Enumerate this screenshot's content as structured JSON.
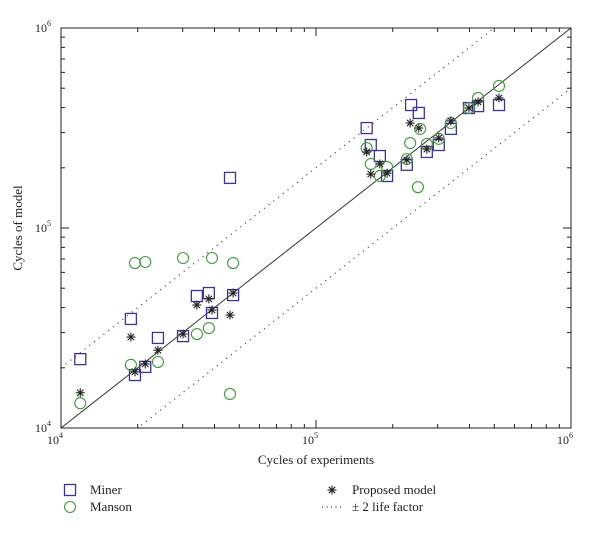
{
  "chart_data": {
    "type": "scatter",
    "title": "",
    "xlabel": "Cycles of experiments",
    "ylabel": "Cycles of model",
    "xscale": "log",
    "yscale": "log",
    "xlim": [
      10000,
      1000000
    ],
    "ylim": [
      10000,
      1000000
    ],
    "xticks": [
      {
        "base": "10",
        "exp": "4"
      },
      {
        "base": "10",
        "exp": "5"
      },
      {
        "base": "10",
        "exp": "6"
      }
    ],
    "yticks": [
      {
        "base": "10",
        "exp": "4"
      },
      {
        "base": "10",
        "exp": "5"
      },
      {
        "base": "10",
        "exp": "6"
      }
    ],
    "grid": false,
    "legend_position": "bottom",
    "reference_lines": [
      {
        "name": "1:1 line",
        "factor": 1,
        "style": "solid"
      },
      {
        "name": "± 2 life factor",
        "factor": 2,
        "style": "dotted"
      },
      {
        "name": "± 2 life factor",
        "factor": 0.5,
        "style": "dotted"
      }
    ],
    "series": [
      {
        "name": "Miner",
        "marker": "square",
        "color": "#3d3399",
        "points": [
          [
            11900,
            22100
          ],
          [
            18800,
            35100
          ],
          [
            19500,
            18400
          ],
          [
            21400,
            20200
          ],
          [
            24000,
            28200
          ],
          [
            30100,
            28800
          ],
          [
            34100,
            45700
          ],
          [
            38000,
            47300
          ],
          [
            39100,
            37600
          ],
          [
            47300,
            46200
          ],
          [
            46000,
            178000
          ],
          [
            236000,
            412000
          ],
          [
            253000,
            376000
          ],
          [
            158000,
            316000
          ],
          [
            164000,
            260000
          ],
          [
            178000,
            229000
          ],
          [
            190000,
            182000
          ],
          [
            227000,
            207000
          ],
          [
            272000,
            240000
          ],
          [
            303000,
            260000
          ],
          [
            338000,
            313000
          ],
          [
            398000,
            398000
          ],
          [
            432000,
            407000
          ],
          [
            522000,
            412000
          ]
        ]
      },
      {
        "name": "Manson",
        "marker": "circle",
        "color": "#3f9a3a",
        "points": [
          [
            11900,
            13300
          ],
          [
            19500,
            66800
          ],
          [
            21400,
            67600
          ],
          [
            18800,
            20700
          ],
          [
            24000,
            21400
          ],
          [
            30100,
            70800
          ],
          [
            34100,
            29500
          ],
          [
            38000,
            31600
          ],
          [
            39100,
            70800
          ],
          [
            47300,
            66800
          ],
          [
            46000,
            14800
          ],
          [
            522000,
            513000
          ],
          [
            432000,
            447000
          ],
          [
            398000,
            398000
          ],
          [
            338000,
            335000
          ],
          [
            303000,
            279000
          ],
          [
            272000,
            263000
          ],
          [
            256000,
            313000
          ],
          [
            234000,
            266000
          ],
          [
            227000,
            221000
          ],
          [
            158000,
            251000
          ],
          [
            164000,
            209000
          ],
          [
            178000,
            182000
          ],
          [
            190000,
            202000
          ],
          [
            251000,
            160000
          ]
        ]
      },
      {
        "name": "Proposed model",
        "marker": "asterisk",
        "color": "#222222",
        "points": [
          [
            11900,
            15000
          ],
          [
            18800,
            28500
          ],
          [
            19500,
            19100
          ],
          [
            21400,
            20900
          ],
          [
            24000,
            24500
          ],
          [
            30100,
            29500
          ],
          [
            34100,
            41200
          ],
          [
            38000,
            44200
          ],
          [
            39100,
            38900
          ],
          [
            46000,
            36700
          ],
          [
            47300,
            47300
          ],
          [
            522000,
            447000
          ],
          [
            432000,
            427000
          ],
          [
            398000,
            398000
          ],
          [
            338000,
            343000
          ],
          [
            303000,
            282000
          ],
          [
            272000,
            248000
          ],
          [
            253000,
            316000
          ],
          [
            234000,
            335000
          ],
          [
            227000,
            219000
          ],
          [
            158000,
            240000
          ],
          [
            178000,
            209000
          ],
          [
            164000,
            186000
          ],
          [
            190000,
            188000
          ]
        ]
      }
    ],
    "legend": [
      {
        "label": "Miner",
        "marker": "square"
      },
      {
        "label": "Manson",
        "marker": "circle"
      },
      {
        "label": "Proposed model",
        "marker": "asterisk"
      },
      {
        "label": "± 2 life factor",
        "marker": "dotted-line"
      }
    ]
  }
}
